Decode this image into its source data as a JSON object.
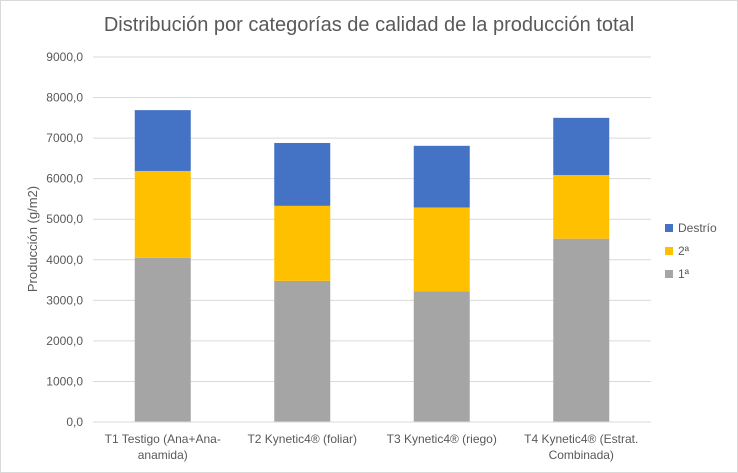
{
  "chart_data": {
    "type": "bar",
    "stacked": true,
    "title": "Distribución por categorías de calidad de la producción total",
    "xlabel": "",
    "ylabel": "Producción (g/m2)",
    "ylim": [
      0,
      9000
    ],
    "yticks": [
      "0,0",
      "1000,0",
      "2000,0",
      "3000,0",
      "4000,0",
      "5000,0",
      "6000,0",
      "7000,0",
      "8000,0",
      "9000,0"
    ],
    "grid": true,
    "legend_position": "right",
    "categories": [
      [
        "T1 Testigo (Ana+Ana-",
        "anamida)"
      ],
      [
        "T2 Kynetic4® (foliar)"
      ],
      [
        "T3 Kynetic4® (riego)"
      ],
      [
        "T4 Kynetic4® (Estrat.",
        "Combinada)"
      ]
    ],
    "series": [
      {
        "name": "1ª",
        "color": "#a5a5a5",
        "values": [
          4050,
          3480,
          3220,
          4520
        ]
      },
      {
        "name": "2ª",
        "color": "#ffc000",
        "values": [
          2140,
          1850,
          2070,
          1570
        ]
      },
      {
        "name": "Destrío",
        "color": "#4472c4",
        "values": [
          1500,
          1550,
          1520,
          1410
        ]
      }
    ],
    "legend_order": [
      "Destrío",
      "2ª",
      "1ª"
    ]
  }
}
